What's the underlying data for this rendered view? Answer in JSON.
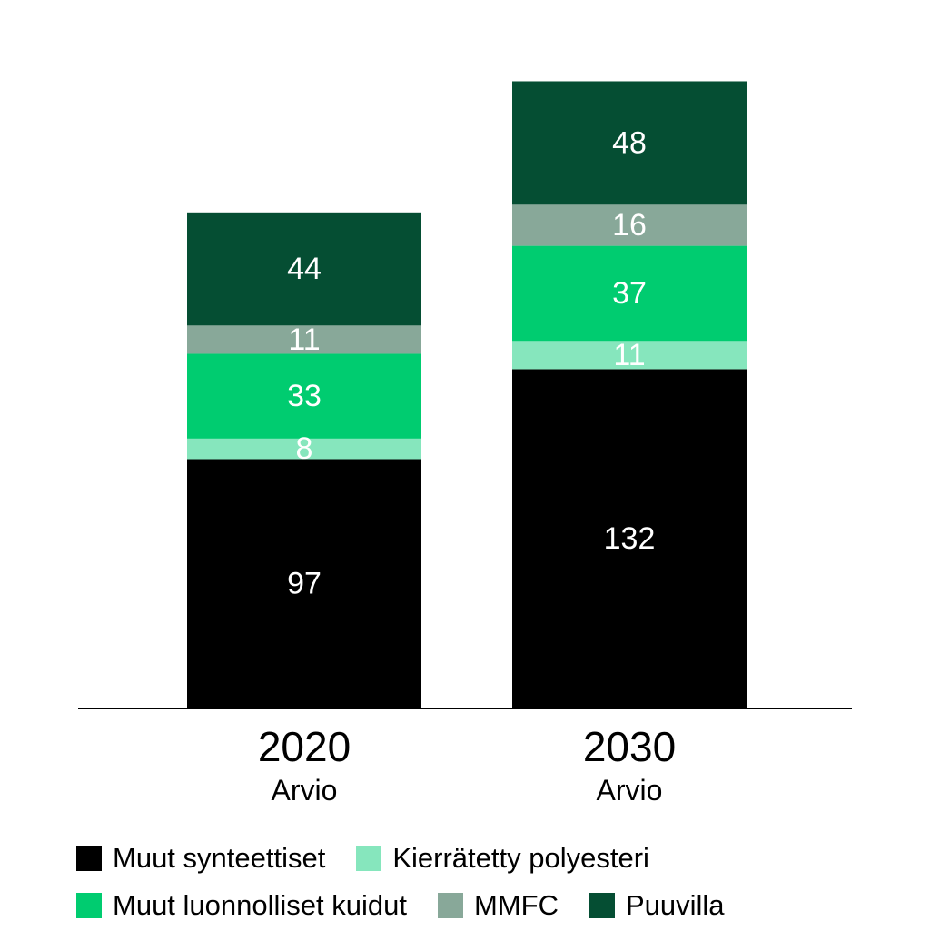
{
  "chart_data": {
    "type": "bar",
    "stacked": true,
    "categories": [
      "2020",
      "2030"
    ],
    "category_sublabels": [
      "Arvio",
      "Arvio"
    ],
    "series": [
      {
        "name": "Muut synteettiset",
        "values": [
          97,
          132
        ],
        "color": "#000000"
      },
      {
        "name": "Kierrätetty polyesteri",
        "values": [
          8,
          11
        ],
        "color": "#86e6bd"
      },
      {
        "name": "Muut luonnolliset kuidut",
        "values": [
          33,
          37
        ],
        "color": "#00cc70"
      },
      {
        "name": "MMFC",
        "values": [
          11,
          16
        ],
        "color": "#88a899"
      },
      {
        "name": "Puuvilla",
        "values": [
          44,
          48
        ],
        "color": "#054e33"
      }
    ],
    "legend": {
      "rows": [
        [
          "Muut synteettiset",
          "Kierrätetty polyesteri"
        ],
        [
          "Muut luonnolliset kuidut",
          "MMFC",
          "Puuvilla"
        ]
      ],
      "placement": "bottom"
    },
    "grid": false,
    "ylim": [
      0,
      244
    ]
  }
}
